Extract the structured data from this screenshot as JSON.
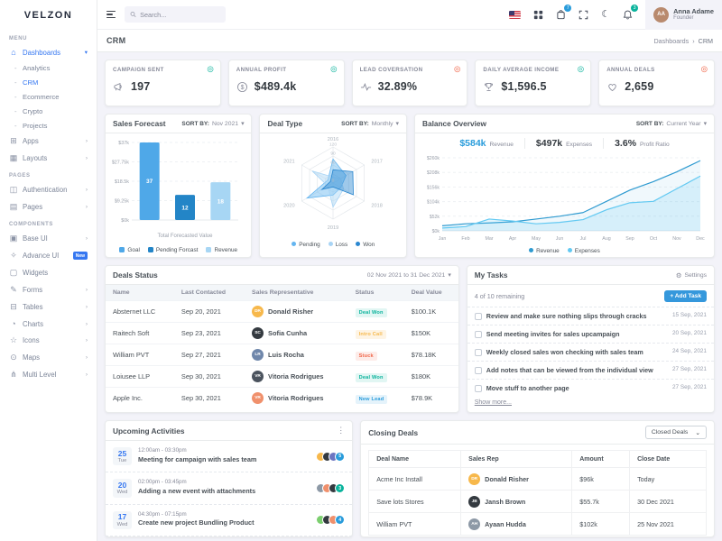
{
  "colors": {
    "primary": "#405189",
    "secondary": "#3577f1",
    "info": "#299cdb",
    "success": "#0ab39c",
    "warning": "#f7b84b",
    "danger": "#f06548"
  },
  "brand": {
    "name": "VELZON"
  },
  "header": {
    "search_placeholder": "Search...",
    "cart_badge": "7",
    "bell_badge": "3",
    "user": {
      "name": "Anna Adame",
      "role": "Founder",
      "initials": "AA"
    }
  },
  "sidebar": {
    "menu_label": "MENU",
    "pages_label": "PAGES",
    "components_label": "COMPONENTS",
    "dashboards": "Dashboards",
    "analytics": "Analytics",
    "crm": "CRM",
    "ecommerce": "Ecommerce",
    "crypto": "Crypto",
    "projects": "Projects",
    "apps": "Apps",
    "layouts": "Layouts",
    "authentication": "Authentication",
    "pages": "Pages",
    "base_ui": "Base UI",
    "advance_ui": "Advance UI",
    "advance_ui_badge": "New",
    "widgets": "Widgets",
    "forms": "Forms",
    "tables": "Tables",
    "charts": "Charts",
    "icons": "Icons",
    "maps": "Maps",
    "multi_level": "Multi Level"
  },
  "page": {
    "title": "CRM",
    "breadcrumb_parent": "Dashboards",
    "breadcrumb_current": "CRM"
  },
  "kpis": [
    {
      "label": "CAMPAIGN SENT",
      "value": "197",
      "icon": "megaphone-icon",
      "trend_color": "#0ab39c"
    },
    {
      "label": "ANNUAL PROFIT",
      "value": "$489.4k",
      "icon": "dollar-icon",
      "trend_color": "#0ab39c"
    },
    {
      "label": "LEAD COVERSATION",
      "value": "32.89%",
      "icon": "pulse-icon",
      "trend_color": "#f06548"
    },
    {
      "label": "DAILY AVERAGE INCOME",
      "value": "$1,596.5",
      "icon": "trophy-icon",
      "trend_color": "#0ab39c"
    },
    {
      "label": "ANNUAL DEALS",
      "value": "2,659",
      "icon": "heart-icon",
      "trend_color": "#f06548"
    }
  ],
  "chart_data": [
    {
      "id": "sales-forecast",
      "type": "bar",
      "title": "Sales Forecast",
      "sort_by_label": "SORT BY:",
      "sort_by_value": "Nov 2021",
      "categories": [
        "Goal",
        "Pending Forcast",
        "Revenue"
      ],
      "values": [
        37,
        12,
        18
      ],
      "bar_colors": [
        "#4fa8e8",
        "#2385c7",
        "#a7d6f4"
      ],
      "y_ticks": [
        "$37k",
        "$27.75k",
        "$18.5k",
        "$9.25k",
        "$0k"
      ],
      "ymax": 37,
      "xlabel": "Total Forecasted Value",
      "legend": [
        "Goal",
        "Pending Forcast",
        "Revenue"
      ]
    },
    {
      "id": "deal-type",
      "type": "radar",
      "title": "Deal Type",
      "sort_by_label": "SORT BY:",
      "sort_by_value": "Monthly",
      "categories": [
        "2016",
        "2017",
        "2018",
        "2019",
        "2020",
        "2021"
      ],
      "rmax": 120,
      "ring_labels": [
        "120",
        "90",
        "60",
        "0"
      ],
      "series": [
        {
          "name": "Pending",
          "color": "#64b5f0",
          "values": [
            80,
            50,
            30,
            40,
            100,
            20
          ]
        },
        {
          "name": "Loss",
          "color": "#a8d4f5",
          "values": [
            20,
            30,
            40,
            80,
            20,
            80
          ]
        },
        {
          "name": "Won",
          "color": "#2a87d0",
          "values": [
            44,
            76,
            78,
            13,
            43,
            10
          ]
        }
      ]
    },
    {
      "id": "balance-overview",
      "type": "area",
      "title": "Balance Overview",
      "sort_by_label": "SORT BY:",
      "sort_by_value": "Current Year",
      "stats": [
        {
          "value": "$584k",
          "label": "Revenue",
          "color": "#299cdb"
        },
        {
          "value": "$497k",
          "label": "Expenses",
          "color": "#343a40"
        },
        {
          "value": "3.6%",
          "label": "Profit Ratio",
          "color": "#343a40"
        }
      ],
      "x": [
        "Jan",
        "Feb",
        "Mar",
        "Apr",
        "May",
        "Jun",
        "Jul",
        "Aug",
        "Sep",
        "Oct",
        "Nov",
        "Dec"
      ],
      "y_ticks": [
        "$260k",
        "$208k",
        "$156k",
        "$104k",
        "$52k",
        "$0k"
      ],
      "ymax": 260,
      "series": [
        {
          "name": "Revenue",
          "color": "#2e9ad0",
          "fill_opacity": 0.07,
          "values": [
            18,
            25,
            28,
            32,
            42,
            52,
            65,
            105,
            145,
            175,
            210,
            250
          ]
        },
        {
          "name": "Expenses",
          "color": "#62c9f2",
          "fill_opacity": 0.18,
          "values": [
            10,
            15,
            42,
            35,
            25,
            30,
            40,
            75,
            100,
            105,
            150,
            195
          ]
        }
      ]
    }
  ],
  "deals_status": {
    "title": "Deals Status",
    "date_range": "02 Nov 2021 to 31 Dec 2021",
    "columns": [
      "Name",
      "Last Contacted",
      "Sales Representative",
      "Status",
      "Deal Value"
    ],
    "rows": [
      {
        "name": "Absternet LLC",
        "last_contacted": "Sep 20, 2021",
        "rep": "Donald Risher",
        "rep_initials": "DR",
        "rep_color": "#f7b84b",
        "status": "Deal Won",
        "deal_value": "$100.1K"
      },
      {
        "name": "Raitech Soft",
        "last_contacted": "Sep 23, 2021",
        "rep": "Sofia Cunha",
        "rep_initials": "SC",
        "rep_color": "#343a40",
        "status": "Intro Call",
        "deal_value": "$150K"
      },
      {
        "name": "William PVT",
        "last_contacted": "Sep 27, 2021",
        "rep": "Luis Rocha",
        "rep_initials": "LR",
        "rep_color": "#6f87ab",
        "status": "Stuck",
        "deal_value": "$78.18K"
      },
      {
        "name": "Loiusee LLP",
        "last_contacted": "Sep 30, 2021",
        "rep": "Vitoria Rodrigues",
        "rep_initials": "VR",
        "rep_color": "#4b535e",
        "status": "Deal Won",
        "deal_value": "$180K"
      },
      {
        "name": "Apple Inc.",
        "last_contacted": "Sep 30, 2021",
        "rep": "Vitoria Rodrigues",
        "rep_initials": "VR",
        "rep_color": "#f0906c",
        "status": "New Lead",
        "deal_value": "$78.9K"
      }
    ]
  },
  "my_tasks": {
    "title": "My Tasks",
    "settings_label": "Settings",
    "remaining": "4 of 10 remaining",
    "add_task_label": "Add Task",
    "show_more": "Show more...",
    "items": [
      {
        "text": "Review and make sure nothing slips through cracks",
        "date": "15 Sep, 2021"
      },
      {
        "text": "Send meeting invites for sales upcampaign",
        "date": "20 Sep, 2021"
      },
      {
        "text": "Weekly closed sales won checking with sales team",
        "date": "24 Sep, 2021"
      },
      {
        "text": "Add notes that can be viewed from the individual view",
        "date": "27 Sep, 2021"
      },
      {
        "text": "Move stuff to another page",
        "date": "27 Sep, 2021"
      }
    ]
  },
  "upcoming_activities": {
    "title": "Upcoming Activities",
    "items": [
      {
        "day": "25",
        "weekday": "Tue",
        "time": "12:00am - 03:30pm",
        "title": "Meeting for campaign with sales team",
        "count": "5",
        "count_color": "#299cdb",
        "avatars": [
          "#f7b84b",
          "#343a40",
          "#6c75c1"
        ]
      },
      {
        "day": "20",
        "weekday": "Wed",
        "time": "02:00pm - 03:45pm",
        "title": "Adding a new event with attachments",
        "count": "3",
        "count_color": "#0ab39c",
        "avatars": [
          "#8d99a6",
          "#f0906c",
          "#343a40"
        ]
      },
      {
        "day": "17",
        "weekday": "Wed",
        "time": "04:30pm - 07:15pm",
        "title": "Create new project Bundling Product",
        "count": "4",
        "count_color": "#299cdb",
        "avatars": [
          "#7ccf6f",
          "#343a40",
          "#f0906c"
        ]
      }
    ]
  },
  "closing_deals": {
    "title": "Closing Deals",
    "filter_value": "Closed Deals",
    "columns": [
      "Deal Name",
      "Sales Rep",
      "Amount",
      "Close Date"
    ],
    "rows": [
      {
        "deal": "Acme Inc Install",
        "rep": "Donald Risher",
        "rep_initials": "DR",
        "rep_color": "#f7b84b",
        "amount": "$96k",
        "close": "Today"
      },
      {
        "deal": "Save lots Stores",
        "rep": "Jansh Brown",
        "rep_initials": "JB",
        "rep_color": "#343a40",
        "amount": "$55.7k",
        "close": "30 Dec 2021"
      },
      {
        "deal": "William PVT",
        "rep": "Ayaan Hudda",
        "rep_initials": "AH",
        "rep_color": "#8d99a6",
        "amount": "$102k",
        "close": "25 Nov 2021"
      }
    ]
  }
}
